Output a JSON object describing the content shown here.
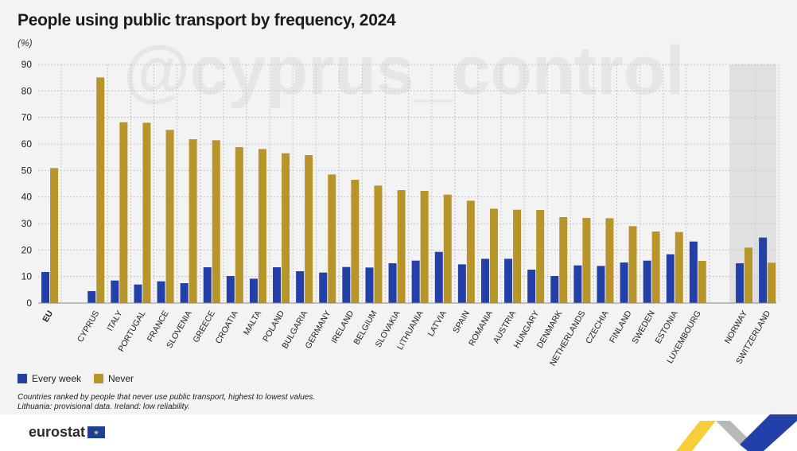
{
  "header": {
    "title": "People using public transport by frequency, 2024",
    "unit": "(%)"
  },
  "legend": {
    "every_week": "Every week",
    "never": "Never"
  },
  "notes": {
    "line1": "Countries ranked by people that never use public transport, highest to lowest values.",
    "line2": "Lithuania: provisional data. Ireland: low reliability."
  },
  "watermark": "@cyprus_control",
  "logo": {
    "text": "eurostat",
    "flag_glyph": "★"
  },
  "colors": {
    "every_week": "#2340a8",
    "never": "#b8952a",
    "highlight_band": "#e0e0e0",
    "grid": "#c8c8c8"
  },
  "chart_data": {
    "type": "bar",
    "ylim": [
      0,
      90
    ],
    "yticks": [
      0,
      10,
      20,
      30,
      40,
      50,
      60,
      70,
      80,
      90
    ],
    "grid": true,
    "legend_position": "bottom-left",
    "categories": [
      "EU",
      "CYPRUS",
      "ITALY",
      "PORTUGAL",
      "FRANCE",
      "SLOVENIA",
      "GREECE",
      "CROATIA",
      "MALTA",
      "POLAND",
      "BULGARIA",
      "GERMANY",
      "IRELAND",
      "BELGIUM",
      "SLOVAKIA",
      "LITHUANIA",
      "LATVIA",
      "SPAIN",
      "ROMANIA",
      "AUSTRIA",
      "HUNGARY",
      "DENMARK",
      "NETHERLANDS",
      "CZECHIA",
      "FINLAND",
      "SWEDEN",
      "ESTONIA",
      "LUXEMBOURG",
      "NORWAY",
      "SWITZERLAND"
    ],
    "groups": [
      {
        "categories": [
          "EU"
        ],
        "bold": true
      },
      {
        "categories": [
          "CYPRUS",
          "ITALY",
          "PORTUGAL",
          "FRANCE",
          "SLOVENIA",
          "GREECE",
          "CROATIA",
          "MALTA",
          "POLAND",
          "BULGARIA",
          "GERMANY",
          "IRELAND",
          "BELGIUM",
          "SLOVAKIA",
          "LITHUANIA",
          "LATVIA",
          "SPAIN",
          "ROMANIA",
          "AUSTRIA",
          "HUNGARY",
          "DENMARK",
          "NETHERLANDS",
          "CZECHIA",
          "FINLAND",
          "SWEDEN",
          "ESTONIA",
          "LUXEMBOURG"
        ]
      },
      {
        "categories": [
          "NORWAY",
          "SWITZERLAND"
        ],
        "shaded": true
      }
    ],
    "series": [
      {
        "name": "Every week",
        "values": [
          11.7,
          4.5,
          8.5,
          7.0,
          8.2,
          7.5,
          13.5,
          10.2,
          9.2,
          13.5,
          12.0,
          11.5,
          13.6,
          13.4,
          15.0,
          16.0,
          19.3,
          14.6,
          16.7,
          16.7,
          12.6,
          10.2,
          14.2,
          14.0,
          15.3,
          16.0,
          18.4,
          23.2,
          15.0,
          24.7
        ]
      },
      {
        "name": "Never",
        "values": [
          50.9,
          85.1,
          68.2,
          68.0,
          65.3,
          61.8,
          61.4,
          58.8,
          58.1,
          56.5,
          55.8,
          48.5,
          46.5,
          44.3,
          42.6,
          42.3,
          40.9,
          38.6,
          35.6,
          35.2,
          35.1,
          32.4,
          32.1,
          32.0,
          29.0,
          27.0,
          26.8,
          15.9,
          20.9,
          15.2
        ]
      }
    ]
  }
}
